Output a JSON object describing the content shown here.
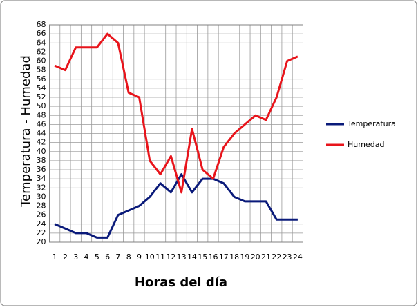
{
  "chart_data": {
    "type": "line",
    "y_label": "Temperatura - Humedad",
    "x_label": "Horas del día",
    "categories": [
      "1",
      "2",
      "3",
      "4",
      "5",
      "6",
      "7",
      "8",
      "9",
      "10",
      "11",
      "12",
      "13",
      "14",
      "15",
      "16",
      "17",
      "18",
      "19",
      "20",
      "21",
      "22",
      "23",
      "24"
    ],
    "series": [
      {
        "name": "Temperatura",
        "color": "#0a1a7a",
        "values": [
          24,
          23,
          22,
          22,
          21,
          21,
          26,
          27,
          28,
          30,
          33,
          31,
          35,
          31,
          34,
          34,
          33,
          30,
          29,
          29,
          29,
          25,
          25,
          25
        ]
      },
      {
        "name": "Humedad",
        "color": "#e8141b",
        "values": [
          59,
          58,
          63,
          63,
          63,
          66,
          64,
          53,
          52,
          38,
          35,
          39,
          31,
          45,
          36,
          34,
          41,
          44,
          46,
          48,
          47,
          52,
          60,
          61
        ]
      }
    ],
    "ylim": [
      20,
      68
    ],
    "yticks": [
      20,
      22,
      24,
      26,
      28,
      30,
      32,
      34,
      36,
      38,
      40,
      42,
      44,
      46,
      48,
      50,
      52,
      54,
      56,
      58,
      60,
      62,
      64,
      66,
      68
    ],
    "grid": true,
    "legend": "right"
  }
}
